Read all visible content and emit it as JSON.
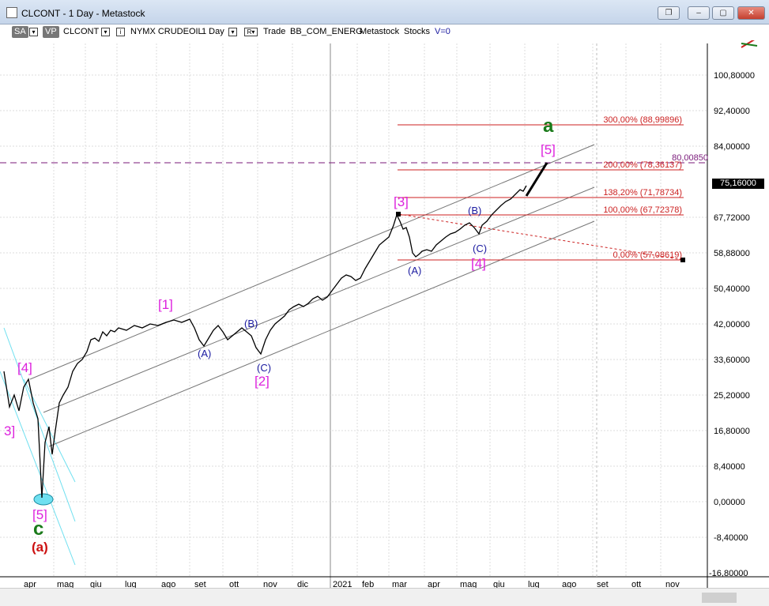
{
  "window": {
    "title": "CLCONT - 1 Day - Metastock",
    "close_icon": "close-icon",
    "maximize_icon": "maximize-icon",
    "minimize_icon": "minimize-icon",
    "restore_icon": "restore-icon"
  },
  "toolbar": {
    "sa": "SA",
    "vp": "VP",
    "symbol": "CLCONT",
    "exchange": "NYMX CRUDEOIL",
    "period": "1 Day",
    "r": "R",
    "trade": "Trade",
    "code": "BB_COM_ENERG",
    "source": "Metastock",
    "type": "Stocks",
    "volume": "V=0"
  },
  "price_axis": [
    "100,80000",
    "92,40000",
    "84,00000",
    "75,16000",
    "67,72000",
    "58,88000",
    "50,40000",
    "42,00000",
    "33,60000",
    "25,20000",
    "16,80000",
    "8,40000",
    "0,00000",
    "-8,40000",
    "-16,80000"
  ],
  "current_price": "75,16000",
  "time_axis": [
    "apr",
    "mag",
    "giu",
    "lug",
    "ago",
    "set",
    "ott",
    "nov",
    "dic",
    "2021",
    "feb",
    "mar",
    "apr",
    "mag",
    "giu",
    "lug",
    "ago",
    "set",
    "ott",
    "nov"
  ],
  "fib_levels": [
    {
      "label": "300,00% (88,99896)"
    },
    {
      "label": "200,00% (78,36137)"
    },
    {
      "label": "138,20% (71,78734)"
    },
    {
      "label": "100,00% (67,72378)"
    },
    {
      "label": "0,00% (57,08619)"
    }
  ],
  "dashed_level": "80,00850",
  "wave_labels": {
    "w3_left": "3]",
    "w4_left": "[4]",
    "w5_low": "[5]",
    "c_low": "c",
    "a_low": "(a)",
    "w1": "[1]",
    "wA1": "(A)",
    "wB1": "(B)",
    "wC1": "(C)",
    "w2": "[2]",
    "w3": "[3]",
    "wA2": "(A)",
    "wB2": "(B)",
    "wC2": "(C)",
    "w4": "[4]",
    "w5": "[5]",
    "a_top": "a"
  },
  "colors": {
    "magenta": "#dd22dd",
    "blue": "#1a1aa0",
    "green": "#1a7a1a",
    "red": "#cc1111",
    "fib": "#cc2222",
    "cyan": "#6fe0f0"
  }
}
